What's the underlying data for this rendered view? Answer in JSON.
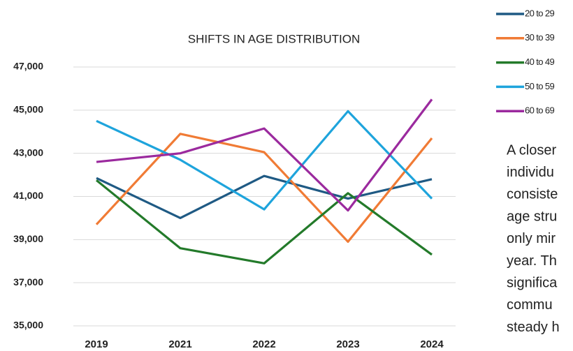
{
  "chart_data": {
    "type": "line",
    "title": "SHIFTS IN AGE DISTRIBUTION",
    "categories": [
      "2019",
      "2021",
      "2022",
      "2023",
      "2024"
    ],
    "series": [
      {
        "name": "20 to 29",
        "color": "#1f5a84",
        "values": [
          41850,
          40000,
          41950,
          40900,
          41800
        ]
      },
      {
        "name": "30 to 39",
        "color": "#f07b35",
        "values": [
          39700,
          43900,
          43050,
          38900,
          43700
        ]
      },
      {
        "name": "40 to 49",
        "color": "#237a2a",
        "values": [
          41750,
          38600,
          37900,
          41150,
          38300
        ]
      },
      {
        "name": "50 to 59",
        "color": "#1ea4dc",
        "values": [
          44500,
          42700,
          40400,
          44950,
          40900
        ]
      },
      {
        "name": "60 to 69",
        "color": "#9b2a9e",
        "values": [
          42600,
          43000,
          44150,
          40350,
          45500
        ]
      }
    ],
    "ylim": [
      35000,
      47000
    ],
    "yticks": [
      {
        "value": 35000,
        "label": "35,000"
      },
      {
        "value": 37000,
        "label": "37,000"
      },
      {
        "value": 39000,
        "label": "39,000"
      },
      {
        "value": 41000,
        "label": "41,000"
      },
      {
        "value": 43000,
        "label": "43,000"
      },
      {
        "value": 45000,
        "label": "45,000"
      },
      {
        "value": 47000,
        "label": "47,000"
      }
    ],
    "grid": true,
    "legend": "top-right"
  },
  "side_text": [
    "A closer",
    "individu",
    "consiste",
    "age stru",
    "only mir",
    "year. Th",
    "significa",
    "commu",
    "steady h"
  ]
}
